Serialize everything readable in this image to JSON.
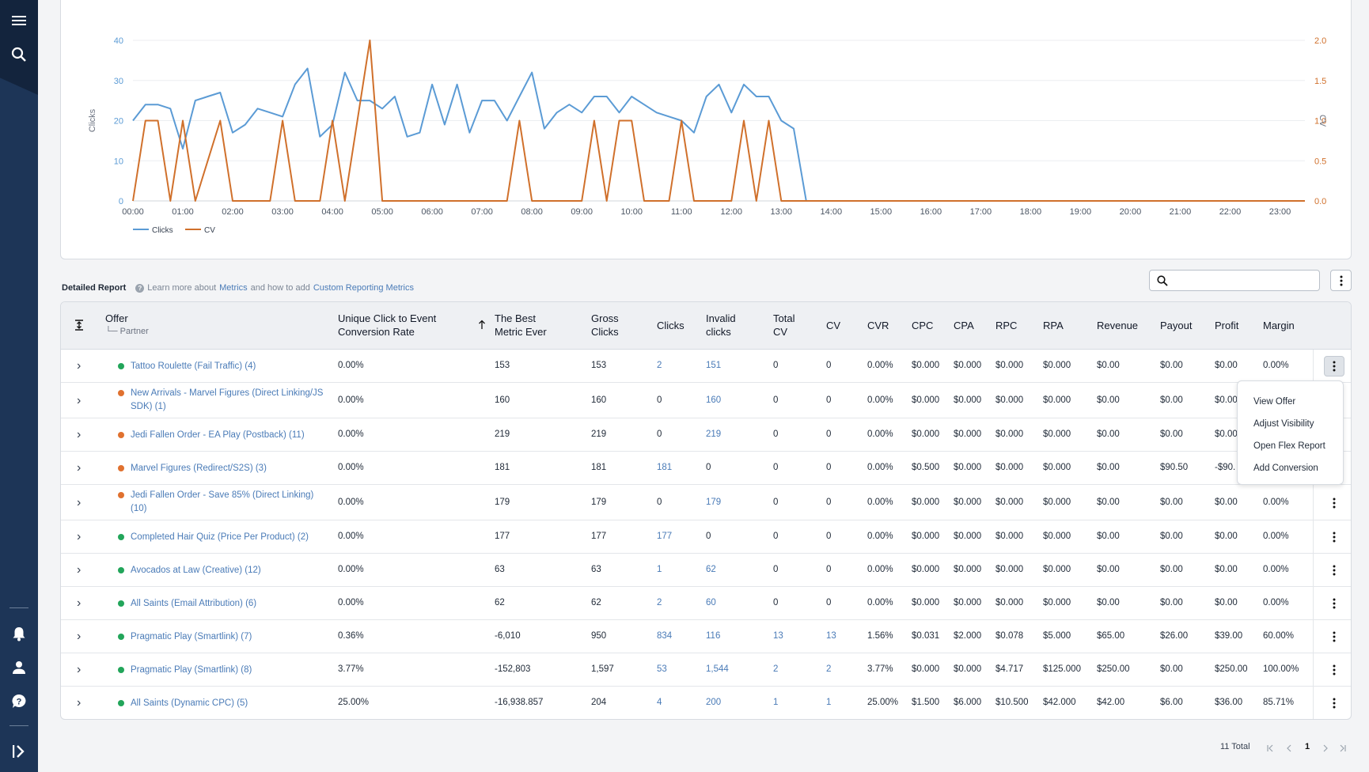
{
  "sidebar": {
    "menu_icon": "hamburger-icon",
    "search_icon": "search-icon",
    "bottom_icons": [
      "bell-icon",
      "user-icon",
      "help-icon",
      "collapse-icon"
    ]
  },
  "chart_data": {
    "type": "line",
    "x": [
      "00:00",
      "01:00",
      "02:00",
      "03:00",
      "04:00",
      "05:00",
      "06:00",
      "07:00",
      "08:00",
      "09:00",
      "10:00",
      "11:00",
      "12:00",
      "13:00",
      "14:00",
      "15:00",
      "16:00",
      "17:00",
      "18:00",
      "19:00",
      "20:00",
      "21:00",
      "22:00",
      "23:00"
    ],
    "ylabel": "Clicks",
    "y2label": "CV",
    "ylim": [
      0,
      40
    ],
    "y2lim": [
      0,
      2.0
    ],
    "yticks": [
      "0",
      "10",
      "20",
      "30",
      "40"
    ],
    "y2ticks": [
      "0.0",
      "0.5",
      "1.0",
      "1.5",
      "2.0"
    ],
    "legend": "bottom-left",
    "series": [
      {
        "name": "Clicks",
        "color": "#5b9bd5",
        "axis": "left",
        "points": [
          [
            0,
            20
          ],
          [
            0.25,
            24
          ],
          [
            0.5,
            24
          ],
          [
            0.75,
            23
          ],
          [
            1,
            13
          ],
          [
            1.25,
            25
          ],
          [
            1.5,
            26
          ],
          [
            1.75,
            27
          ],
          [
            2,
            17
          ],
          [
            2.25,
            19
          ],
          [
            2.5,
            23
          ],
          [
            2.75,
            22
          ],
          [
            3,
            21
          ],
          [
            3.25,
            29
          ],
          [
            3.5,
            33
          ],
          [
            3.75,
            16
          ],
          [
            4,
            19
          ],
          [
            4.25,
            32
          ],
          [
            4.5,
            25
          ],
          [
            4.75,
            25
          ],
          [
            5,
            23
          ],
          [
            5.25,
            26
          ],
          [
            5.5,
            16
          ],
          [
            5.75,
            17
          ],
          [
            6,
            29
          ],
          [
            6.25,
            19
          ],
          [
            6.5,
            29
          ],
          [
            6.75,
            17
          ],
          [
            7,
            25
          ],
          [
            7.25,
            25
          ],
          [
            7.5,
            20
          ],
          [
            7.75,
            26
          ],
          [
            8,
            32
          ],
          [
            8.25,
            18
          ],
          [
            8.5,
            22
          ],
          [
            8.75,
            24
          ],
          [
            9,
            22
          ],
          [
            9.25,
            26
          ],
          [
            9.5,
            26
          ],
          [
            9.75,
            22
          ],
          [
            10,
            26
          ],
          [
            10.25,
            24
          ],
          [
            10.5,
            22
          ],
          [
            10.75,
            21
          ],
          [
            11,
            20
          ],
          [
            11.25,
            17
          ],
          [
            11.5,
            26
          ],
          [
            11.75,
            29
          ],
          [
            12,
            22
          ],
          [
            12.25,
            29
          ],
          [
            12.5,
            26
          ],
          [
            12.75,
            26
          ],
          [
            13,
            20
          ],
          [
            13.25,
            18
          ],
          [
            13.5,
            0
          ],
          [
            23.5,
            0
          ]
        ]
      },
      {
        "name": "CV",
        "color": "#d0702b",
        "axis": "right",
        "points": [
          [
            0,
            0
          ],
          [
            0.25,
            1
          ],
          [
            0.5,
            1
          ],
          [
            0.75,
            0
          ],
          [
            1,
            1
          ],
          [
            1.25,
            0
          ],
          [
            1.75,
            1
          ],
          [
            2,
            0
          ],
          [
            2.75,
            0
          ],
          [
            3,
            1
          ],
          [
            3.25,
            0
          ],
          [
            3.75,
            0
          ],
          [
            4,
            1
          ],
          [
            4.25,
            0
          ],
          [
            4.75,
            2
          ],
          [
            5,
            0
          ],
          [
            7.5,
            0
          ],
          [
            7.75,
            1
          ],
          [
            8,
            0
          ],
          [
            9,
            0
          ],
          [
            9.25,
            1
          ],
          [
            9.5,
            0
          ],
          [
            9.75,
            1
          ],
          [
            10,
            1
          ],
          [
            10.25,
            0
          ],
          [
            10.75,
            0
          ],
          [
            11,
            1
          ],
          [
            11.25,
            0
          ],
          [
            12,
            0
          ],
          [
            12.25,
            1
          ],
          [
            12.5,
            0
          ],
          [
            12.75,
            1
          ],
          [
            13,
            0
          ],
          [
            23.5,
            0
          ]
        ]
      }
    ]
  },
  "toolbar": {
    "title": "Detailed Report",
    "help_prefix": "Learn more about",
    "help_link1": "Metrics",
    "help_mid": "and how to add",
    "help_link2": "Custom Reporting Metrics",
    "search_placeholder": ""
  },
  "table": {
    "headers": {
      "offer": "Offer",
      "partner": "Partner",
      "ucecr1": "Unique Click to Event",
      "ucecr2": "Conversion Rate",
      "best1": "The Best",
      "best2": "Metric Ever",
      "gross1": "Gross",
      "gross2": "Clicks",
      "clicks": "Clicks",
      "invalid1": "Invalid",
      "invalid2": "clicks",
      "tcv1": "Total",
      "tcv2": "CV",
      "cv": "CV",
      "cvr": "CVR",
      "cpc": "CPC",
      "cpa": "CPA",
      "rpc": "RPC",
      "rpa": "RPA",
      "revenue": "Revenue",
      "payout": "Payout",
      "profit": "Profit",
      "margin": "Margin"
    },
    "rows": [
      {
        "status": "#22a55a",
        "offer": "Tattoo Roulette (Fail Traffic) (4)",
        "ucecr": "0.00%",
        "best": "153",
        "gross": "153",
        "clicks": "2",
        "invalid": "151",
        "tcv": "0",
        "cv": "0",
        "cvr": "0.00%",
        "cpc": "$0.000",
        "cpa": "$0.000",
        "rpc": "$0.000",
        "rpa": "$0.000",
        "revenue": "$0.00",
        "payout": "$0.00",
        "profit": "$0.00",
        "margin": "0.00%"
      },
      {
        "status": "#e0712f",
        "offer": "New Arrivals - Marvel Figures (Direct Linking/JS SDK) (1)",
        "ucecr": "0.00%",
        "best": "160",
        "gross": "160",
        "clicks": "0",
        "invalid": "160",
        "tcv": "0",
        "cv": "0",
        "cvr": "0.00%",
        "cpc": "$0.000",
        "cpa": "$0.000",
        "rpc": "$0.000",
        "rpa": "$0.000",
        "revenue": "$0.00",
        "payout": "$0.00",
        "profit": "$0.00",
        "margin": ""
      },
      {
        "status": "#e0712f",
        "offer": "Jedi Fallen Order - EA Play (Postback) (11)",
        "ucecr": "0.00%",
        "best": "219",
        "gross": "219",
        "clicks": "0",
        "invalid": "219",
        "tcv": "0",
        "cv": "0",
        "cvr": "0.00%",
        "cpc": "$0.000",
        "cpa": "$0.000",
        "rpc": "$0.000",
        "rpa": "$0.000",
        "revenue": "$0.00",
        "payout": "$0.00",
        "profit": "$0.00",
        "margin": ""
      },
      {
        "status": "#e0712f",
        "offer": "Marvel Figures (Redirect/S2S) (3)",
        "ucecr": "0.00%",
        "best": "181",
        "gross": "181",
        "clicks": "181",
        "invalid": "0",
        "tcv": "0",
        "cv": "0",
        "cvr": "0.00%",
        "cpc": "$0.500",
        "cpa": "$0.000",
        "rpc": "$0.000",
        "rpa": "$0.000",
        "revenue": "$0.00",
        "payout": "$90.50",
        "profit": "-$90.",
        "margin": ""
      },
      {
        "status": "#e0712f",
        "offer": "Jedi Fallen Order - Save 85% (Direct Linking) (10)",
        "ucecr": "0.00%",
        "best": "179",
        "gross": "179",
        "clicks": "0",
        "invalid": "179",
        "tcv": "0",
        "cv": "0",
        "cvr": "0.00%",
        "cpc": "$0.000",
        "cpa": "$0.000",
        "rpc": "$0.000",
        "rpa": "$0.000",
        "revenue": "$0.00",
        "payout": "$0.00",
        "profit": "$0.00",
        "margin": "0.00%"
      },
      {
        "status": "#22a55a",
        "offer": "Completed Hair Quiz (Price Per Product) (2)",
        "ucecr": "0.00%",
        "best": "177",
        "gross": "177",
        "clicks": "177",
        "invalid": "0",
        "tcv": "0",
        "cv": "0",
        "cvr": "0.00%",
        "cpc": "$0.000",
        "cpa": "$0.000",
        "rpc": "$0.000",
        "rpa": "$0.000",
        "revenue": "$0.00",
        "payout": "$0.00",
        "profit": "$0.00",
        "margin": "0.00%"
      },
      {
        "status": "#22a55a",
        "offer": "Avocados at Law (Creative) (12)",
        "ucecr": "0.00%",
        "best": "63",
        "gross": "63",
        "clicks": "1",
        "invalid": "62",
        "tcv": "0",
        "cv": "0",
        "cvr": "0.00%",
        "cpc": "$0.000",
        "cpa": "$0.000",
        "rpc": "$0.000",
        "rpa": "$0.000",
        "revenue": "$0.00",
        "payout": "$0.00",
        "profit": "$0.00",
        "margin": "0.00%"
      },
      {
        "status": "#22a55a",
        "offer": "All Saints (Email Attribution) (6)",
        "ucecr": "0.00%",
        "best": "62",
        "gross": "62",
        "clicks": "2",
        "invalid": "60",
        "tcv": "0",
        "cv": "0",
        "cvr": "0.00%",
        "cpc": "$0.000",
        "cpa": "$0.000",
        "rpc": "$0.000",
        "rpa": "$0.000",
        "revenue": "$0.00",
        "payout": "$0.00",
        "profit": "$0.00",
        "margin": "0.00%"
      },
      {
        "status": "#22a55a",
        "offer": "Pragmatic Play (Smartlink) (7)",
        "ucecr": "0.36%",
        "best": "-6,010",
        "gross": "950",
        "clicks": "834",
        "invalid": "116",
        "tcv": "13",
        "cv": "13",
        "cvr": "1.56%",
        "cpc": "$0.031",
        "cpa": "$2.000",
        "rpc": "$0.078",
        "rpa": "$5.000",
        "revenue": "$65.00",
        "payout": "$26.00",
        "profit": "$39.00",
        "margin": "60.00%"
      },
      {
        "status": "#22a55a",
        "offer": "Pragmatic Play (Smartlink) (8)",
        "ucecr": "3.77%",
        "best": "-152,803",
        "gross": "1,597",
        "clicks": "53",
        "invalid": "1,544",
        "tcv": "2",
        "cv": "2",
        "cvr": "3.77%",
        "cpc": "$0.000",
        "cpa": "$0.000",
        "rpc": "$4.717",
        "rpa": "$125.000",
        "revenue": "$250.00",
        "payout": "$0.00",
        "profit": "$250.00",
        "margin": "100.00%"
      },
      {
        "status": "#22a55a",
        "offer": "All Saints (Dynamic CPC) (5)",
        "ucecr": "25.00%",
        "best": "-16,938.857",
        "gross": "204",
        "clicks": "4",
        "invalid": "200",
        "tcv": "1",
        "cv": "1",
        "cvr": "25.00%",
        "cpc": "$1.500",
        "cpa": "$6.000",
        "rpc": "$10.500",
        "rpa": "$42.000",
        "revenue": "$42.00",
        "payout": "$6.00",
        "profit": "$36.00",
        "margin": "85.71%"
      }
    ]
  },
  "context_menu": {
    "items": [
      "View Offer",
      "Adjust Visibility",
      "Open Flex Report",
      "Add Conversion"
    ]
  },
  "pagination": {
    "total": "11 Total",
    "current": "1"
  }
}
